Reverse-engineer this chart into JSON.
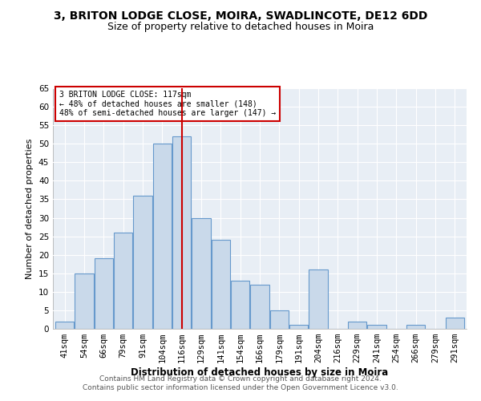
{
  "title1": "3, BRITON LODGE CLOSE, MOIRA, SWADLINCOTE, DE12 6DD",
  "title2": "Size of property relative to detached houses in Moira",
  "xlabel": "Distribution of detached houses by size in Moira",
  "ylabel": "Number of detached properties",
  "categories": [
    "41sqm",
    "54sqm",
    "66sqm",
    "79sqm",
    "91sqm",
    "104sqm",
    "116sqm",
    "129sqm",
    "141sqm",
    "154sqm",
    "166sqm",
    "179sqm",
    "191sqm",
    "204sqm",
    "216sqm",
    "229sqm",
    "241sqm",
    "254sqm",
    "266sqm",
    "279sqm",
    "291sqm"
  ],
  "values": [
    2,
    15,
    19,
    26,
    36,
    50,
    52,
    30,
    24,
    13,
    12,
    5,
    1,
    16,
    0,
    2,
    1,
    0,
    1,
    0,
    3
  ],
  "bar_color": "#c9d9ea",
  "bar_edge_color": "#6699cc",
  "vline_x_index": 6,
  "vline_color": "#cc0000",
  "annotation_text": "3 BRITON LODGE CLOSE: 117sqm\n← 48% of detached houses are smaller (148)\n48% of semi-detached houses are larger (147) →",
  "annotation_box_color": "#ffffff",
  "annotation_box_edge": "#cc0000",
  "ylim": [
    0,
    65
  ],
  "yticks": [
    0,
    5,
    10,
    15,
    20,
    25,
    30,
    35,
    40,
    45,
    50,
    55,
    60,
    65
  ],
  "footer_text": "Contains HM Land Registry data © Crown copyright and database right 2024.\nContains public sector information licensed under the Open Government Licence v3.0.",
  "background_color": "#ffffff",
  "plot_bg_color": "#e8eef5",
  "grid_color": "#ffffff",
  "title1_fontsize": 10,
  "title2_fontsize": 9,
  "xlabel_fontsize": 8.5,
  "ylabel_fontsize": 8,
  "tick_fontsize": 7.5,
  "footer_fontsize": 6.5
}
